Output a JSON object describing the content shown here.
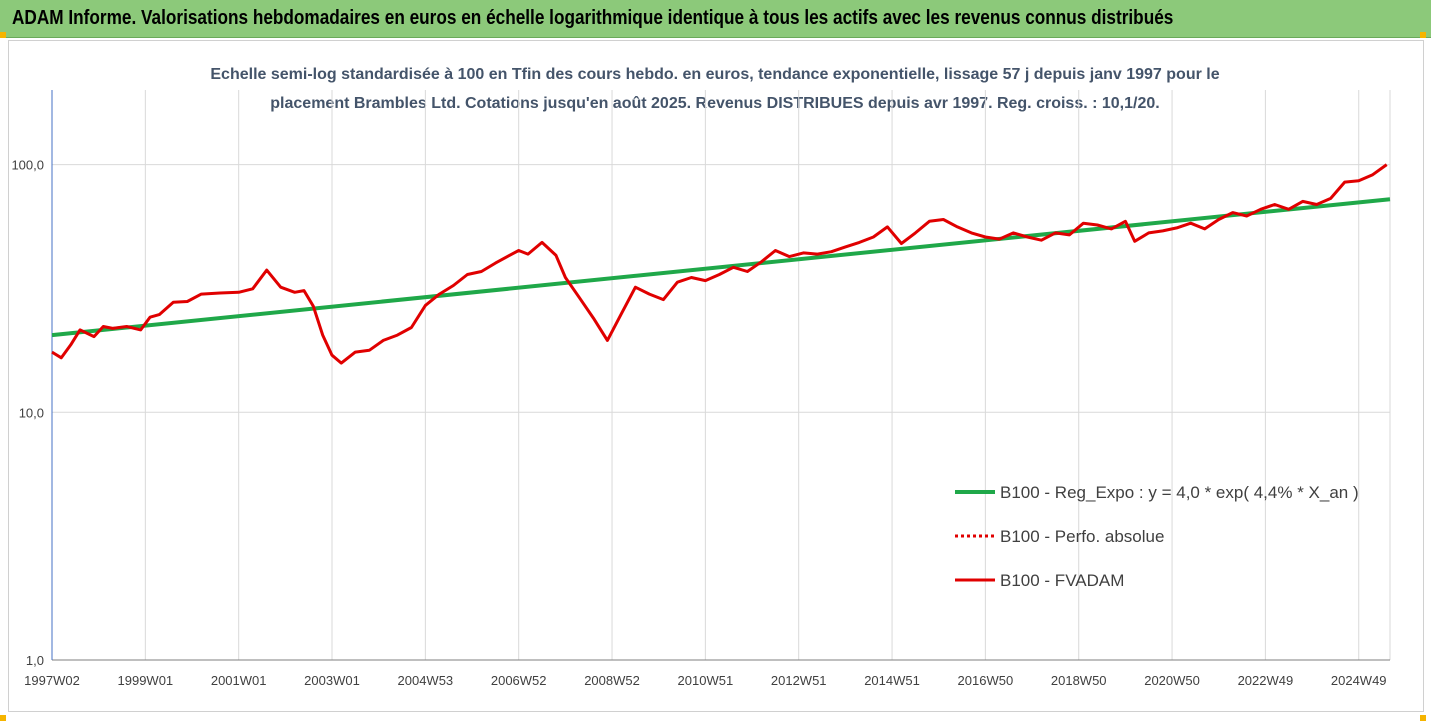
{
  "header": {
    "title": "ADAM Informe. Valorisations hebdomadaires en euros en échelle logarithmique identique à tous les actifs avec les revenus connus distribués"
  },
  "chart_data": {
    "type": "line",
    "title_lines": [
      "Echelle semi-log standardisée à 100 en Tfin des cours hebdo. en euros, tendance exponentielle, lissage 57 j depuis janv 1997 pour le",
      "placement Brambles Ltd. Cotations jusqu'en août 2025. Revenus DISTRIBUES depuis avr 1997. Reg. croiss. : 10,1/20."
    ],
    "y_scale": "log",
    "ylim": [
      1,
      200
    ],
    "y_ticks": [
      {
        "value": 1,
        "label": "1,0"
      },
      {
        "value": 10,
        "label": "10,0"
      },
      {
        "value": 100,
        "label": "100,0"
      }
    ],
    "xlim": [
      1997.0,
      2025.67
    ],
    "x_ticks": [
      {
        "x": 1997.0,
        "label": "1997W02"
      },
      {
        "x": 1999.0,
        "label": "1999W01"
      },
      {
        "x": 2001.0,
        "label": "2001W01"
      },
      {
        "x": 2003.0,
        "label": "2003W01"
      },
      {
        "x": 2005.0,
        "label": "2004W53"
      },
      {
        "x": 2007.0,
        "label": "2006W52"
      },
      {
        "x": 2009.0,
        "label": "2008W52"
      },
      {
        "x": 2011.0,
        "label": "2010W51"
      },
      {
        "x": 2013.0,
        "label": "2012W51"
      },
      {
        "x": 2015.0,
        "label": "2014W51"
      },
      {
        "x": 2017.0,
        "label": "2016W50"
      },
      {
        "x": 2019.0,
        "label": "2018W50"
      },
      {
        "x": 2021.0,
        "label": "2020W50"
      },
      {
        "x": 2023.0,
        "label": "2022W49"
      },
      {
        "x": 2025.0,
        "label": "2024W49"
      }
    ],
    "grid": "vertical",
    "legend_position": "right",
    "series": [
      {
        "name": "B100 - Reg_Expo : y = 4,0 * exp( 4,4% *  X_an )",
        "color": "#1fa849",
        "style": "solid",
        "x": [
          1997.0,
          2025.67
        ],
        "y": [
          20.5,
          72.5
        ]
      },
      {
        "name": "B100 - Perfo. absolue",
        "color": "#e00000",
        "style": "dotted",
        "x": [],
        "y": []
      },
      {
        "name": "B100 - FVADAM",
        "color": "#e00000",
        "style": "solid",
        "x": [
          1997.0,
          1997.2,
          1997.4,
          1997.6,
          1997.9,
          1998.1,
          1998.3,
          1998.6,
          1998.9,
          1999.1,
          1999.3,
          1999.6,
          1999.9,
          2000.2,
          2000.6,
          2001.0,
          2001.3,
          2001.6,
          2001.9,
          2002.2,
          2002.4,
          2002.6,
          2002.8,
          2003.0,
          2003.2,
          2003.5,
          2003.8,
          2004.1,
          2004.4,
          2004.7,
          2005.0,
          2005.3,
          2005.6,
          2005.9,
          2006.2,
          2006.5,
          2006.8,
          2007.0,
          2007.2,
          2007.5,
          2007.8,
          2008.0,
          2008.3,
          2008.6,
          2008.9,
          2009.2,
          2009.5,
          2009.8,
          2010.1,
          2010.4,
          2010.7,
          2011.0,
          2011.3,
          2011.6,
          2011.9,
          2012.2,
          2012.5,
          2012.8,
          2013.1,
          2013.4,
          2013.7,
          2014.0,
          2014.3,
          2014.6,
          2014.9,
          2015.2,
          2015.5,
          2015.8,
          2016.1,
          2016.4,
          2016.7,
          2017.0,
          2017.3,
          2017.6,
          2017.9,
          2018.2,
          2018.5,
          2018.8,
          2019.1,
          2019.4,
          2019.7,
          2020.0,
          2020.2,
          2020.5,
          2020.8,
          2021.1,
          2021.4,
          2021.7,
          2022.0,
          2022.3,
          2022.6,
          2022.9,
          2023.2,
          2023.5,
          2023.8,
          2024.1,
          2024.4,
          2024.7,
          2025.0,
          2025.3,
          2025.6
        ],
        "y": [
          17.5,
          16.6,
          18.7,
          21.5,
          20.2,
          22.2,
          21.8,
          22.2,
          21.5,
          24.2,
          24.8,
          27.8,
          28.0,
          30.0,
          30.3,
          30.5,
          31.5,
          37.5,
          32.0,
          30.5,
          31.0,
          26.8,
          20.5,
          17.0,
          15.8,
          17.5,
          17.8,
          19.5,
          20.5,
          22.0,
          27.0,
          30.0,
          32.5,
          36.0,
          37.0,
          40.0,
          43.0,
          45.0,
          43.5,
          48.5,
          43.0,
          35.0,
          29.0,
          24.0,
          19.5,
          25.0,
          32.0,
          30.0,
          28.5,
          33.5,
          35.0,
          34.0,
          36.0,
          38.5,
          37.0,
          40.5,
          45.0,
          42.5,
          44.0,
          43.5,
          44.5,
          46.5,
          48.5,
          51.0,
          56.0,
          48.0,
          53.0,
          59.0,
          60.0,
          56.0,
          53.0,
          51.0,
          50.0,
          53.0,
          51.0,
          49.5,
          53.0,
          52.0,
          58.0,
          57.0,
          55.0,
          59.0,
          49.0,
          53.0,
          54.0,
          55.5,
          58.0,
          55.0,
          60.0,
          64.0,
          62.0,
          66.0,
          69.0,
          66.0,
          71.0,
          69.0,
          73.0,
          85.0,
          86.0,
          91.0,
          100.0
        ]
      }
    ]
  }
}
